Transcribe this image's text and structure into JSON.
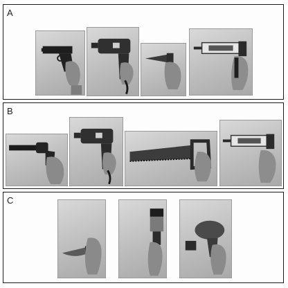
{
  "figure": {
    "panels": [
      {
        "label": "A",
        "photos": [
          "pistol-in-hand",
          "power-drill-in-hand",
          "caulk-gun-nozzle-in-hand",
          "caulking-gun-in-hand"
        ]
      },
      {
        "label": "B",
        "photos": [
          "revolver-in-hand",
          "power-drill-in-hand",
          "hand-saw-in-hand",
          "caulking-gun-in-hand"
        ]
      },
      {
        "label": "C",
        "photos": [
          "knife-in-hand",
          "paintbrush-in-hand",
          "hair-dryer-in-hand"
        ]
      }
    ]
  }
}
